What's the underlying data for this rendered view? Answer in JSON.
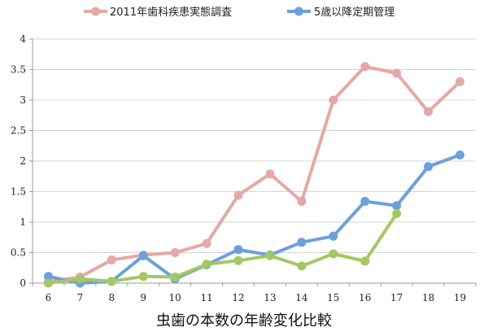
{
  "chart_data": {
    "type": "line",
    "title": "",
    "xlabel": "虫歯の本数の年齢変化比較",
    "ylabel": "",
    "x": [
      6,
      7,
      8,
      9,
      10,
      11,
      12,
      13,
      14,
      15,
      16,
      17,
      18,
      19
    ],
    "y_ticks": [
      "0",
      "0.5",
      "1",
      "1.5",
      "2",
      "2.5",
      "3",
      "3.5",
      "4"
    ],
    "ylim": [
      0,
      4
    ],
    "grid": "horizontal",
    "legend_position": "top",
    "series": [
      {
        "name": "2011年歯科疾患実態調査",
        "color": "#e4a9a5",
        "values": [
          0.02,
          0.1,
          0.38,
          0.46,
          0.5,
          0.65,
          1.44,
          1.79,
          1.34,
          3.0,
          3.55,
          3.44,
          2.81,
          3.3
        ]
      },
      {
        "name": "5歳以降定期管理",
        "color": "#6aa1dc",
        "values": [
          0.11,
          0.0,
          0.03,
          0.45,
          0.07,
          0.3,
          0.55,
          0.46,
          0.67,
          0.77,
          1.34,
          1.27,
          1.91,
          2.1
        ]
      },
      {
        "name": "",
        "color": "#a4c763",
        "values": [
          0.0,
          0.07,
          0.03,
          0.11,
          0.1,
          0.31,
          0.37,
          0.45,
          0.28,
          0.48,
          0.36,
          1.14,
          null,
          null
        ]
      }
    ]
  }
}
